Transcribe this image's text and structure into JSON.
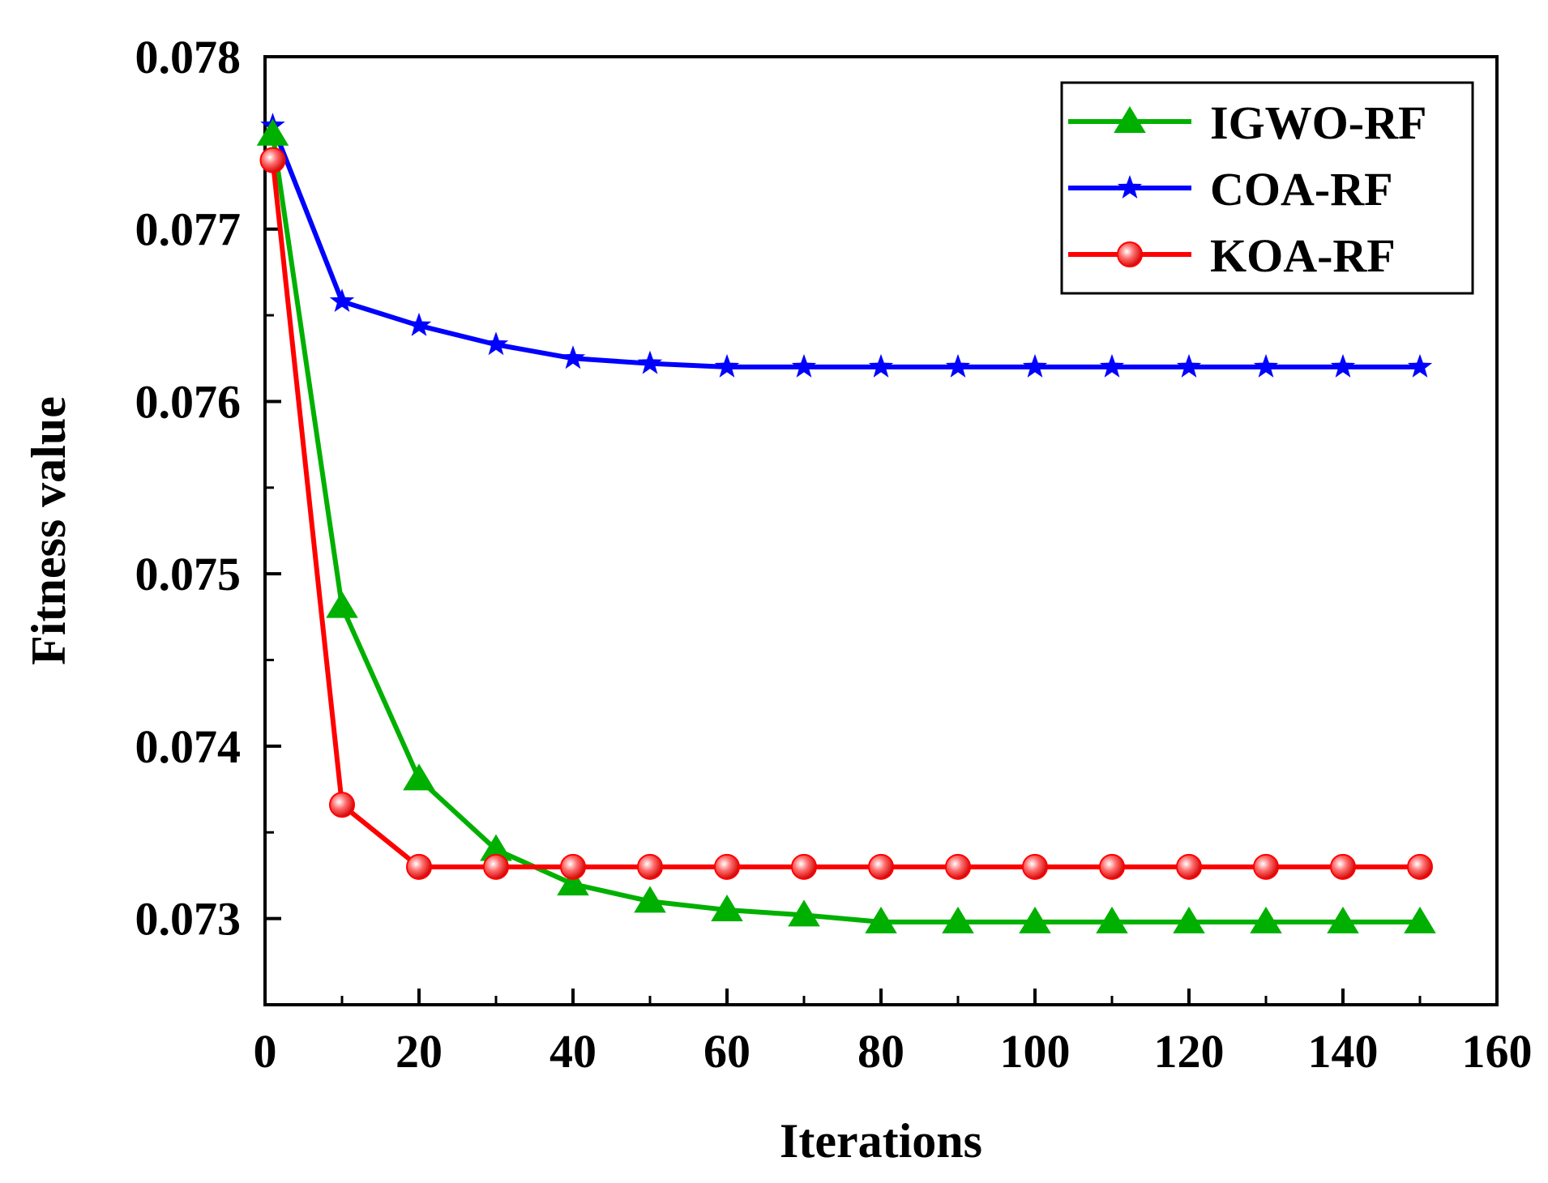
{
  "chart_data": {
    "type": "line",
    "title": "",
    "xlabel": "Iterations",
    "ylabel": "Fitness value",
    "xlim": [
      0,
      160
    ],
    "ylim": [
      0.0725,
      0.078
    ],
    "xticks": [
      0,
      20,
      40,
      60,
      80,
      100,
      120,
      140,
      160
    ],
    "xtick_labels": [
      "0",
      "20",
      "40",
      "60",
      "80",
      "100",
      "120",
      "140",
      "160"
    ],
    "yticks": [
      0.073,
      0.074,
      0.075,
      0.076,
      0.077,
      0.078
    ],
    "ytick_labels": [
      "0.073",
      "0.074",
      "0.075",
      "0.076",
      "0.077",
      "0.078"
    ],
    "legend_position": "top-right",
    "x": [
      1,
      10,
      20,
      30,
      40,
      50,
      60,
      70,
      80,
      90,
      100,
      110,
      120,
      130,
      140,
      150
    ],
    "series": [
      {
        "name": "IGWO-RF",
        "color": "#00b000",
        "marker": "triangle",
        "values": [
          0.07755,
          0.07481,
          0.07381,
          0.0734,
          0.0732,
          0.0731,
          0.07305,
          0.07302,
          0.07298,
          0.07298,
          0.07298,
          0.07298,
          0.07298,
          0.07298,
          0.07298,
          0.07298
        ]
      },
      {
        "name": "COA-RF",
        "color": "#0000ff",
        "marker": "star",
        "values": [
          0.0776,
          0.07658,
          0.07644,
          0.07633,
          0.07625,
          0.07622,
          0.0762,
          0.0762,
          0.0762,
          0.0762,
          0.0762,
          0.0762,
          0.0762,
          0.0762,
          0.0762,
          0.0762
        ]
      },
      {
        "name": "KOA-RF",
        "color": "#ff0000",
        "marker": "circle",
        "values": [
          0.0774,
          0.07366,
          0.0733,
          0.0733,
          0.0733,
          0.0733,
          0.0733,
          0.0733,
          0.0733,
          0.0733,
          0.0733,
          0.0733,
          0.0733,
          0.0733,
          0.0733,
          0.0733
        ]
      }
    ]
  }
}
